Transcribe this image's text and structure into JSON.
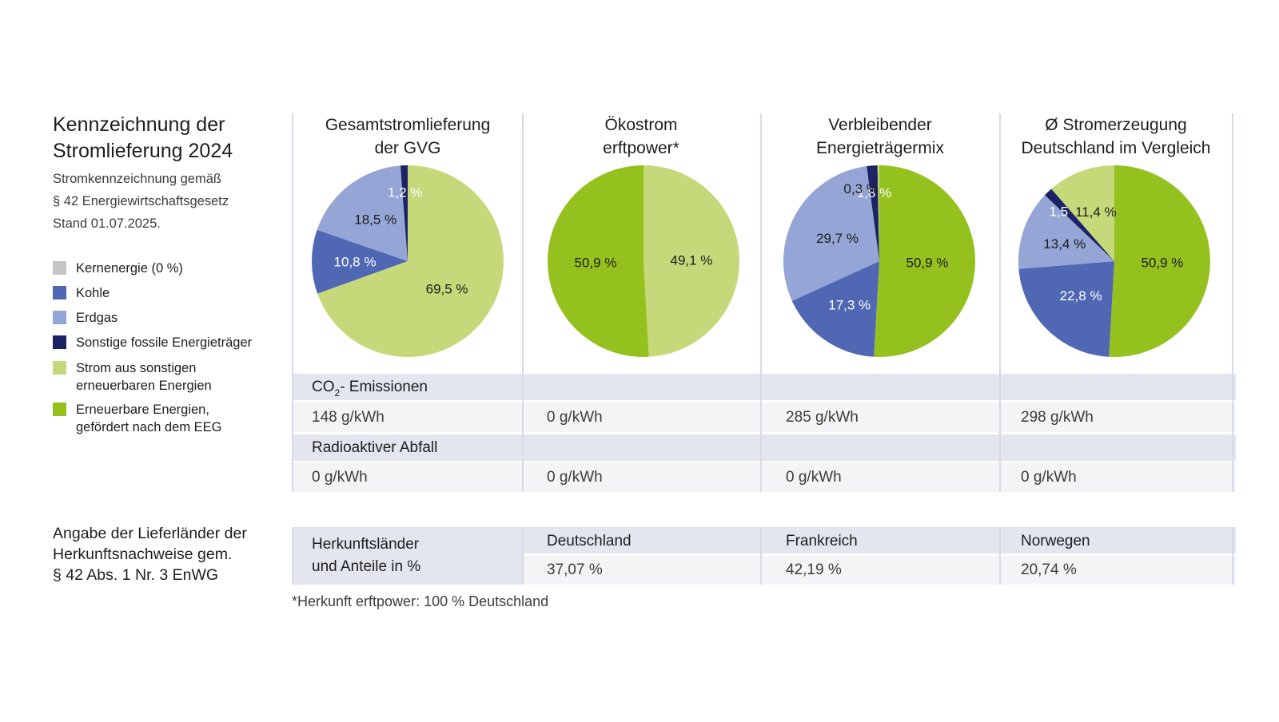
{
  "header": {
    "title_line1": "Kennzeichnung der",
    "title_line2": "Stromlieferung 2024",
    "subtitle_line1": "Stromkennzeichnung gemäß",
    "subtitle_line2": "§ 42 Energiewirtschaftsgesetz",
    "subtitle_line3": "Stand 01.07.2025."
  },
  "legend": [
    {
      "label": "Kernenergie (0 %)",
      "color": "#c4c4c4"
    },
    {
      "label": "Kohle",
      "color": "#5068b4"
    },
    {
      "label": "Erdgas",
      "color": "#94a5d6"
    },
    {
      "label": "Sonstige fossile Energieträger",
      "color": "#1c2364"
    },
    {
      "label": "Strom aus sonstigen\nerneuerbaren Energien",
      "color": "#c5d87a"
    },
    {
      "label": "Erneuerbare Energien,\ngefördert nach dem EEG",
      "color": "#95c11f"
    }
  ],
  "chart_data": [
    {
      "type": "pie",
      "title": "Gesamtstromlieferung der GVG",
      "title_line1": "Gesamtstromlieferung",
      "title_line2": "der GVG",
      "slices": [
        {
          "label": "Strom aus sonstigen erneuerbaren Energien",
          "value": 69.5,
          "text": "69,5 %",
          "color": "#c5d87a"
        },
        {
          "label": "Kohle",
          "value": 10.8,
          "text": "10,8 %",
          "color": "#5068b4"
        },
        {
          "label": "Erdgas",
          "value": 18.5,
          "text": "18,5 %",
          "color": "#94a5d6"
        },
        {
          "label": "Sonstige fossile Energieträger",
          "value": 1.2,
          "text": "1,2 %",
          "color": "#1c2364"
        }
      ]
    },
    {
      "type": "pie",
      "title": "Ökostrom erftpower*",
      "title_line1": "Ökostrom",
      "title_line2": "erftpower*",
      "slices": [
        {
          "label": "Strom aus sonstigen erneuerbaren Energien",
          "value": 49.1,
          "text": "49,1 %",
          "color": "#c5d87a"
        },
        {
          "label": "Erneuerbare Energien, gefördert nach dem EEG",
          "value": 50.9,
          "text": "50,9 %",
          "color": "#95c11f"
        }
      ]
    },
    {
      "type": "pie",
      "title": "Verbleibender Energieträgermix",
      "title_line1": "Verbleibender",
      "title_line2": "Energieträgermix",
      "slices": [
        {
          "label": "Erneuerbare Energien, gefördert nach dem EEG",
          "value": 50.9,
          "text": "50,9 %",
          "color": "#95c11f"
        },
        {
          "label": "Kohle",
          "value": 17.3,
          "text": "17,3 %",
          "color": "#5068b4"
        },
        {
          "label": "Erdgas",
          "value": 29.7,
          "text": "29,7 %",
          "color": "#94a5d6"
        },
        {
          "label": "Sonstige fossile Energieträger",
          "value": 1.8,
          "text": "1,8 %",
          "color": "#1c2364"
        },
        {
          "label": "Strom aus sonstigen erneuerbaren Energien",
          "value": 0.3,
          "text": "0,3 %",
          "color": "#c5d87a"
        }
      ]
    },
    {
      "type": "pie",
      "title": "Ø Stromerzeugung Deutschland im Vergleich",
      "title_line1": "Ø Stromerzeugung",
      "title_line2": "Deutschland im Vergleich",
      "slices": [
        {
          "label": "Erneuerbare Energien, gefördert nach dem EEG",
          "value": 50.9,
          "text": "50,9 %",
          "color": "#95c11f"
        },
        {
          "label": "Kohle",
          "value": 22.8,
          "text": "22,8 %",
          "color": "#5068b4"
        },
        {
          "label": "Erdgas",
          "value": 13.4,
          "text": "13,4 %",
          "color": "#94a5d6"
        },
        {
          "label": "Sonstige fossile Energieträger",
          "value": 1.5,
          "text": "1,5 %",
          "color": "#1c2364"
        },
        {
          "label": "Strom aus sonstigen erneuerbaren Energien",
          "value": 11.4,
          "text": "11,4 %",
          "color": "#c5d87a"
        }
      ]
    }
  ],
  "emissions": {
    "co2_label_main": "CO",
    "co2_label_sub": "2",
    "co2_label_rest": "- Emissionen",
    "co2_values": [
      "148 g/kWh",
      "0 g/kWh",
      "285 g/kWh",
      "298 g/kWh"
    ],
    "waste_label": "Radioaktiver Abfall",
    "waste_values": [
      "0 g/kWh",
      "0 g/kWh",
      "0 g/kWh",
      "0 g/kWh"
    ]
  },
  "origin": {
    "title_line1": "Angabe der Lieferländer der",
    "title_line2": "Herkunftsnachweise gem.",
    "title_line3": "§ 42 Abs. 1 Nr. 3 EnWG",
    "label_line1": "Herkunftsländer",
    "label_line2": "und Anteile in %",
    "countries": [
      "Deutschland",
      "Frankreich",
      "Norwegen"
    ],
    "shares": [
      "37,07 %",
      "42,19 %",
      "20,74 %"
    ]
  },
  "footnote": "*Herkunft erftpower: 100 % Deutschland"
}
